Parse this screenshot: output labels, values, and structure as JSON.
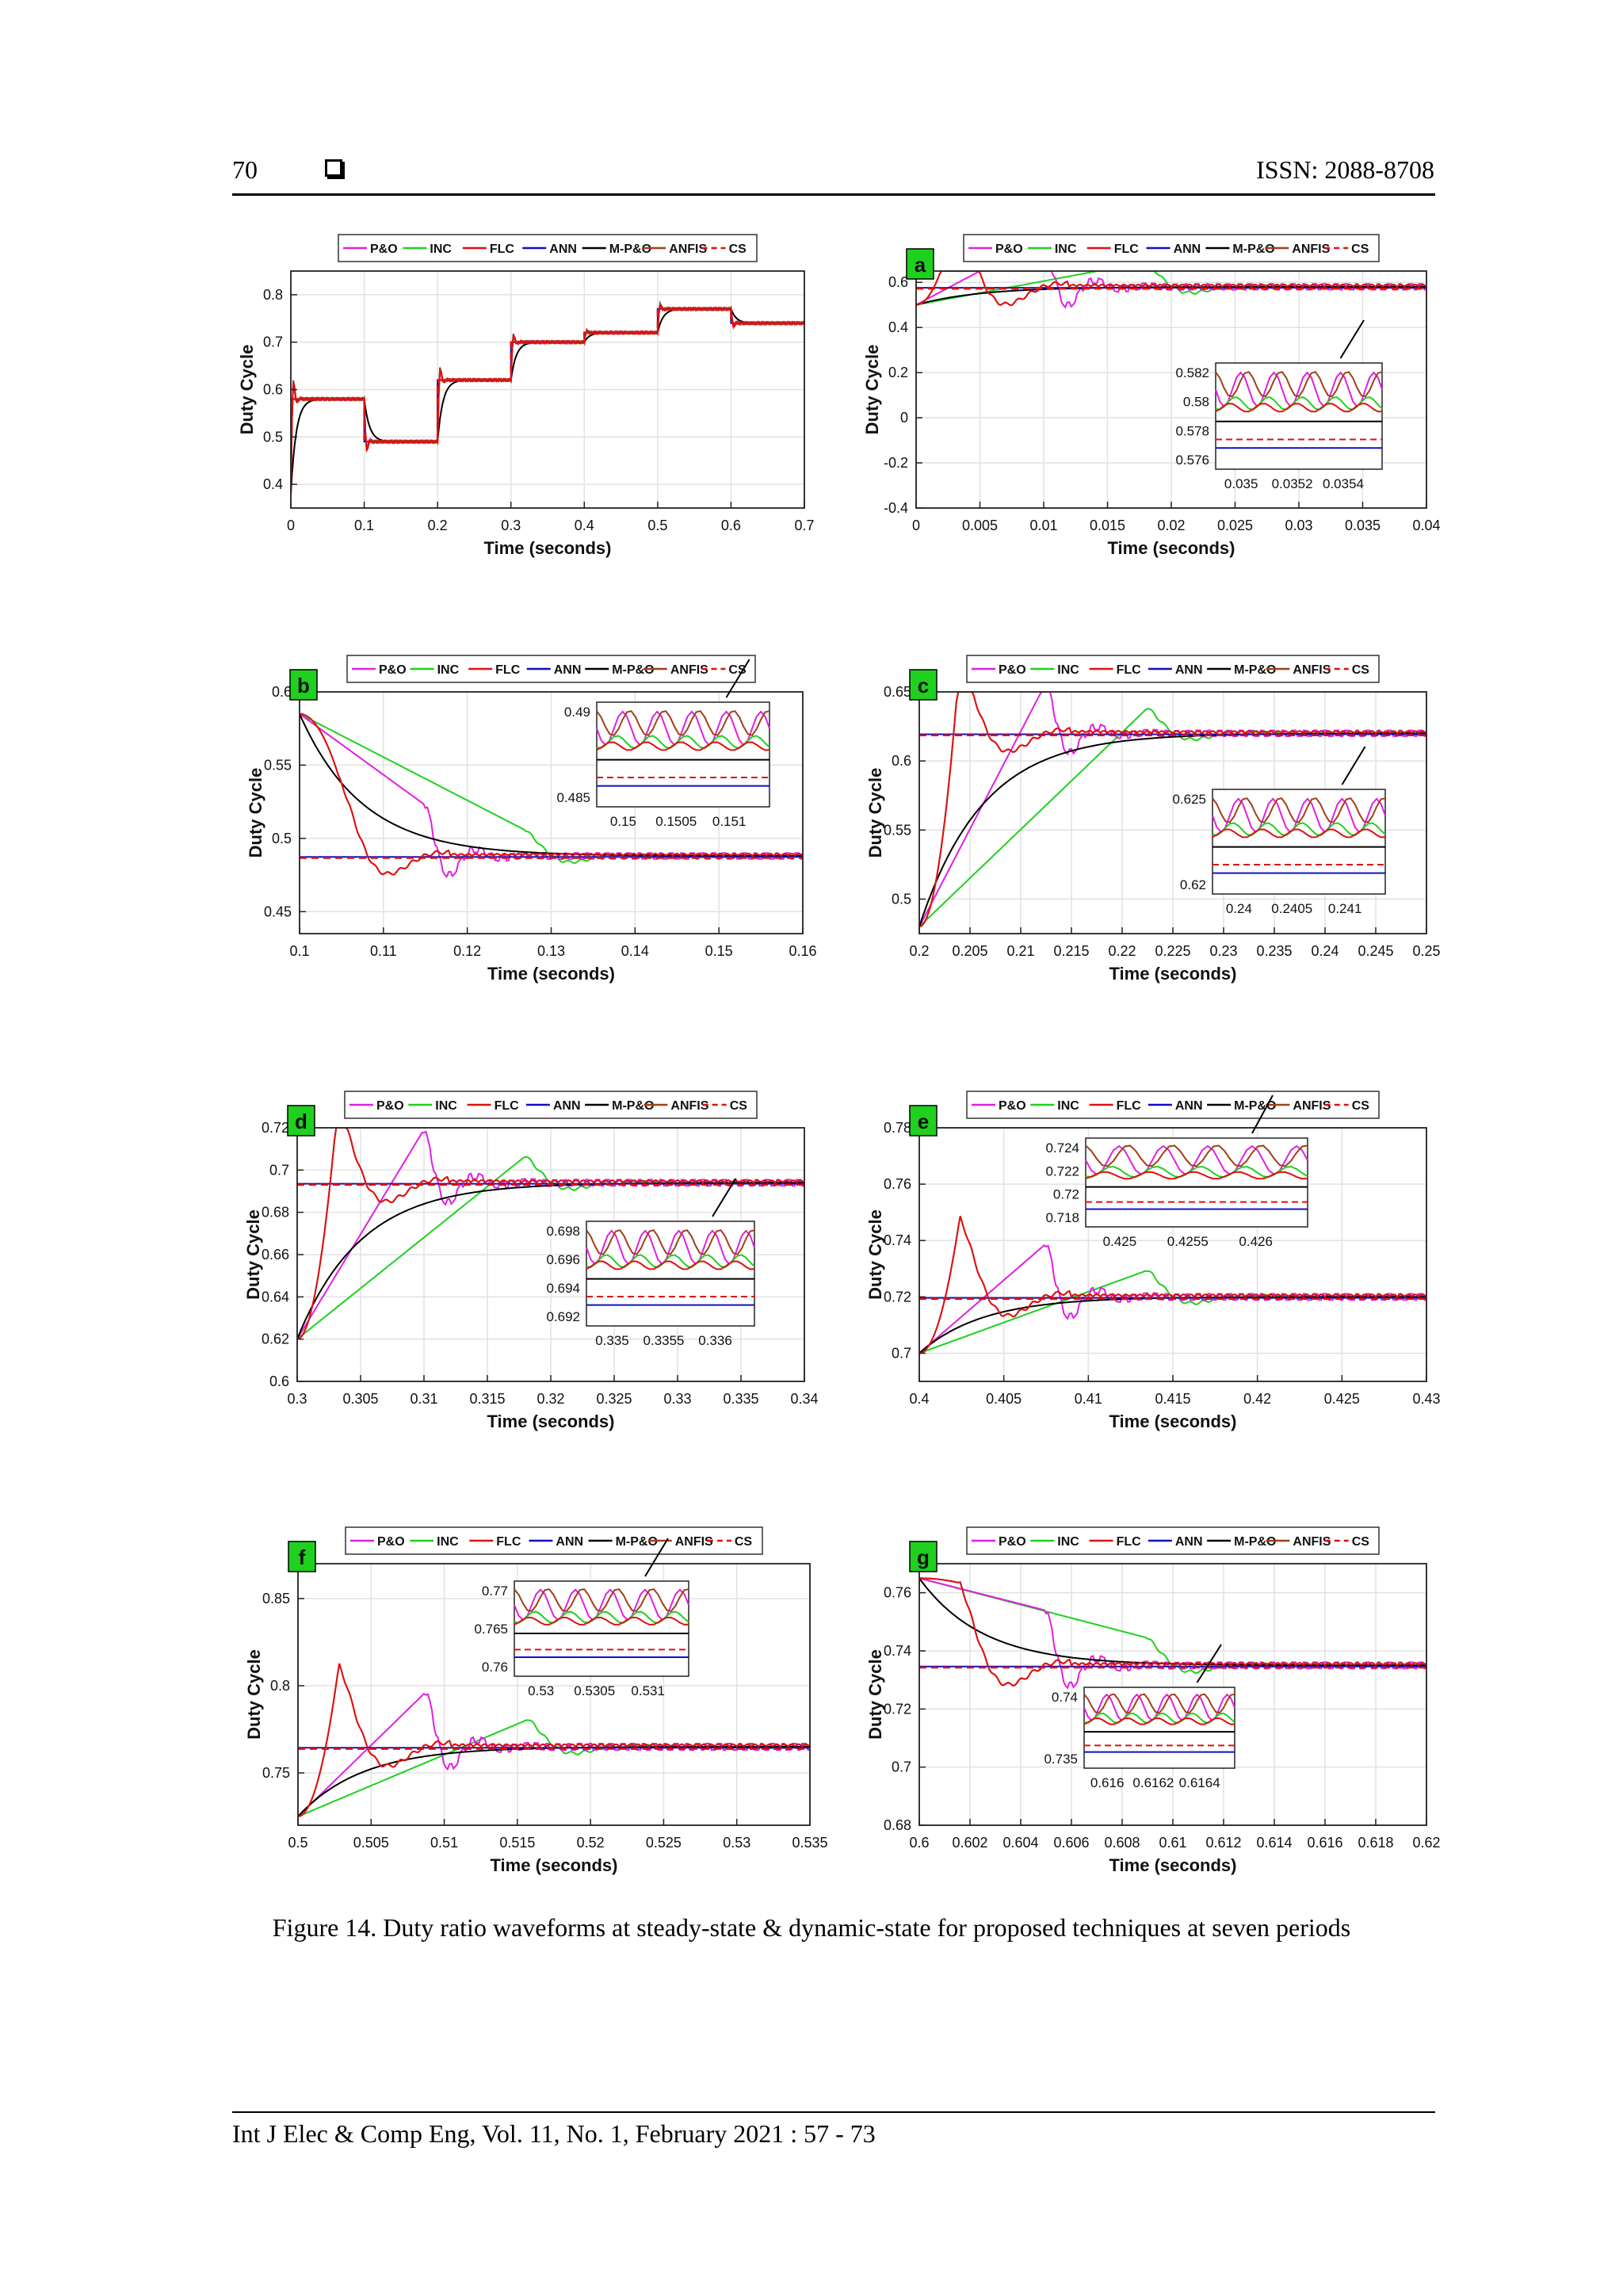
{
  "header": {
    "page_number": "70",
    "issn": "ISSN: 2088-8708"
  },
  "caption": "Figure 14. Duty ratio waveforms at steady-state & dynamic-state for proposed techniques at seven periods",
  "footer": "Int J Elec & Comp Eng, Vol. 11, No. 1, February 2021 :  57 - 73",
  "legend": [
    {
      "name": "P&O",
      "color": "#e020e0",
      "dash": false
    },
    {
      "name": "INC",
      "color": "#20d020",
      "dash": false
    },
    {
      "name": "FLC",
      "color": "#e01010",
      "dash": false
    },
    {
      "name": "ANN",
      "color": "#1010c0",
      "dash": false
    },
    {
      "name": "M-P&O",
      "color": "#000000",
      "dash": false
    },
    {
      "name": "ANFIS",
      "color": "#a0401a",
      "dash": false
    },
    {
      "name": "CS",
      "color": "#e01010",
      "dash": true
    }
  ],
  "chart_data": [
    {
      "type": "line",
      "label": "",
      "xlabel": "Time (seconds)",
      "ylabel": "Duty Cycle",
      "xlim": [
        0,
        0.7
      ],
      "ylim": [
        0.35,
        0.85
      ],
      "xticks": [
        "0",
        "0.1",
        "0.2",
        "0.3",
        "0.4",
        "0.5",
        "0.6",
        "0.7"
      ],
      "xtickvals": [
        0,
        0.1,
        0.2,
        0.3,
        0.4,
        0.5,
        0.6,
        0.7
      ],
      "yticks": [
        "0.4",
        "0.5",
        "0.6",
        "0.7",
        "0.8"
      ],
      "ytickvals": [
        0.4,
        0.5,
        0.6,
        0.7,
        0.8
      ],
      "steps": [
        [
          0,
          0.58
        ],
        [
          0.1,
          0.49
        ],
        [
          0.2,
          0.62
        ],
        [
          0.3,
          0.7
        ],
        [
          0.4,
          0.72
        ],
        [
          0.5,
          0.77
        ],
        [
          0.6,
          0.74
        ]
      ],
      "inset": null
    },
    {
      "type": "line",
      "label": "a",
      "xlabel": "Time (seconds)",
      "ylabel": "Duty Cycle",
      "xlim": [
        0,
        0.04
      ],
      "ylim": [
        -0.4,
        0.65
      ],
      "xticks": [
        "0",
        "0.005",
        "0.01",
        "0.015",
        "0.02",
        "0.025",
        "0.03",
        "0.035",
        "0.04"
      ],
      "xtickvals": [
        0,
        0.005,
        0.01,
        0.015,
        0.02,
        0.025,
        0.03,
        0.035,
        0.04
      ],
      "yticks": [
        "-0.4",
        "-0.2",
        "0",
        "0.2",
        "0.4",
        "0.6"
      ],
      "ytickvals": [
        -0.4,
        -0.2,
        0,
        0.2,
        0.4,
        0.6
      ],
      "final": 0.58,
      "inset": {
        "xticks": [
          "0.035",
          "0.0352",
          "0.0354"
        ],
        "yticks": [
          "0.582",
          "0.58",
          "0.578",
          "0.576"
        ]
      }
    },
    {
      "type": "line",
      "label": "b",
      "xlabel": "Time (seconds)",
      "ylabel": "Duty Cycle",
      "xlim": [
        0.1,
        0.16
      ],
      "ylim": [
        0.435,
        0.6
      ],
      "xticks": [
        "0.1",
        "0.11",
        "0.12",
        "0.13",
        "0.14",
        "0.15",
        "0.16"
      ],
      "xtickvals": [
        0.1,
        0.11,
        0.12,
        0.13,
        0.14,
        0.15,
        0.16
      ],
      "yticks": [
        "0.45",
        "0.5",
        "0.55",
        "0.6"
      ],
      "ytickvals": [
        0.45,
        0.5,
        0.55,
        0.6
      ],
      "final": 0.488,
      "inset": {
        "xticks": [
          "0.15",
          "0.1505",
          "0.151"
        ],
        "yticks": [
          "0.49",
          "0.485"
        ]
      }
    },
    {
      "type": "line",
      "label": "c",
      "xlabel": "Time (seconds)",
      "ylabel": "Duty Cycle",
      "xlim": [
        0.2,
        0.25
      ],
      "ylim": [
        0.475,
        0.65
      ],
      "xticks": [
        "0.2",
        "0.205",
        "0.21",
        "0.215",
        "0.22",
        "0.225",
        "0.23",
        "0.235",
        "0.24",
        "0.245",
        "0.25"
      ],
      "xtickvals": [
        0.2,
        0.205,
        0.21,
        0.215,
        0.22,
        0.225,
        0.23,
        0.235,
        0.24,
        0.245,
        0.25
      ],
      "yticks": [
        "0.5",
        "0.55",
        "0.6",
        "0.65"
      ],
      "ytickvals": [
        0.5,
        0.55,
        0.6,
        0.65
      ],
      "final": 0.62,
      "inset": {
        "xticks": [
          "0.24",
          "0.2405",
          "0.241"
        ],
        "yticks": [
          "0.625",
          "0.62"
        ]
      }
    },
    {
      "type": "line",
      "label": "d",
      "xlabel": "Time (seconds)",
      "ylabel": "Duty Cycle",
      "xlim": [
        0.3,
        0.34
      ],
      "ylim": [
        0.6,
        0.72
      ],
      "xticks": [
        "0.3",
        "0.305",
        "0.31",
        "0.315",
        "0.32",
        "0.325",
        "0.33",
        "0.335",
        "0.34"
      ],
      "xtickvals": [
        0.3,
        0.305,
        0.31,
        0.315,
        0.32,
        0.325,
        0.33,
        0.335,
        0.34
      ],
      "yticks": [
        "0.6",
        "0.62",
        "0.64",
        "0.66",
        "0.68",
        "0.7",
        "0.72"
      ],
      "ytickvals": [
        0.6,
        0.62,
        0.64,
        0.66,
        0.68,
        0.7,
        0.72
      ],
      "final": 0.694,
      "inset": {
        "xticks": [
          "0.335",
          "0.3355",
          "0.336"
        ],
        "yticks": [
          "0.698",
          "0.696",
          "0.694",
          "0.692"
        ]
      }
    },
    {
      "type": "line",
      "label": "e",
      "xlabel": "Time (seconds)",
      "ylabel": "Duty Cycle",
      "xlim": [
        0.4,
        0.43
      ],
      "ylim": [
        0.69,
        0.78
      ],
      "xticks": [
        "0.4",
        "0.405",
        "0.41",
        "0.415",
        "0.42",
        "0.425",
        "0.43"
      ],
      "xtickvals": [
        0.4,
        0.405,
        0.41,
        0.415,
        0.42,
        0.425,
        0.43
      ],
      "yticks": [
        "0.7",
        "0.72",
        "0.74",
        "0.76",
        "0.78"
      ],
      "ytickvals": [
        0.7,
        0.72,
        0.74,
        0.76,
        0.78
      ],
      "final": 0.72,
      "inset": {
        "xticks": [
          "0.425",
          "0.4255",
          "0.426"
        ],
        "yticks": [
          "0.724",
          "0.722",
          "0.72",
          "0.718"
        ]
      }
    },
    {
      "type": "line",
      "label": "f",
      "xlabel": "Time (seconds)",
      "ylabel": "Duty Cycle",
      "xlim": [
        0.5,
        0.535
      ],
      "ylim": [
        0.72,
        0.87
      ],
      "xticks": [
        "0.5",
        "0.505",
        "0.51",
        "0.515",
        "0.52",
        "0.525",
        "0.53",
        "0.535"
      ],
      "xtickvals": [
        0.5,
        0.505,
        0.51,
        0.515,
        0.52,
        0.525,
        0.53,
        0.535
      ],
      "yticks": [
        "0.75",
        "0.8",
        "0.85"
      ],
      "ytickvals": [
        0.75,
        0.8,
        0.85
      ],
      "final": 0.765,
      "inset": {
        "xticks": [
          "0.53",
          "0.5305",
          "0.531"
        ],
        "yticks": [
          "0.77",
          "0.765",
          "0.76"
        ]
      }
    },
    {
      "type": "line",
      "label": "g",
      "xlabel": "Time (seconds)",
      "ylabel": "Duty Cycle",
      "xlim": [
        0.6,
        0.62
      ],
      "ylim": [
        0.68,
        0.77
      ],
      "xticks": [
        "0.6",
        "0.602",
        "0.604",
        "0.606",
        "0.608",
        "0.61",
        "0.612",
        "0.614",
        "0.616",
        "0.618",
        "0.62"
      ],
      "xtickvals": [
        0.6,
        0.602,
        0.604,
        0.606,
        0.608,
        0.61,
        0.612,
        0.614,
        0.616,
        0.618,
        0.62
      ],
      "yticks": [
        "0.68",
        "0.7",
        "0.72",
        "0.74",
        "0.76"
      ],
      "ytickvals": [
        0.68,
        0.7,
        0.72,
        0.74,
        0.76
      ],
      "final": 0.735,
      "inset": {
        "xticks": [
          "0.616",
          "0.6162",
          "0.6164"
        ],
        "yticks": [
          "0.74",
          "0.735"
        ]
      }
    }
  ]
}
